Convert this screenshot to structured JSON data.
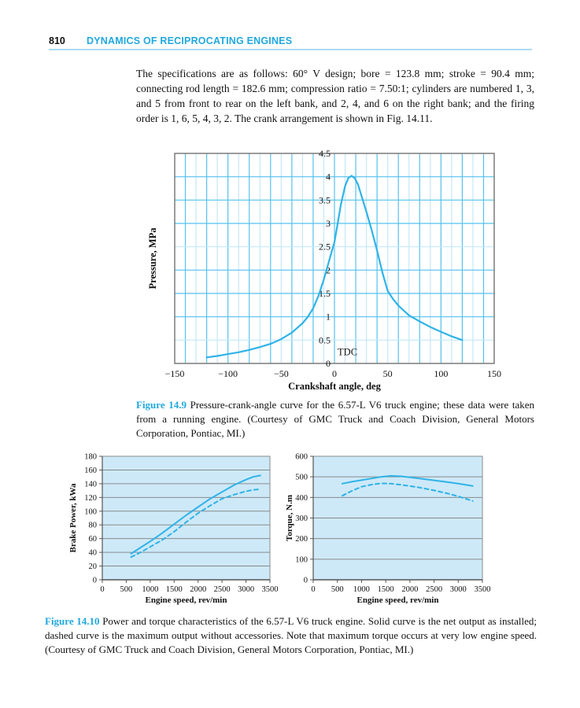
{
  "header": {
    "folio": "810",
    "title": "DYNAMICS OF RECIPROCATING ENGINES"
  },
  "paragraph": "The specifications are as follows: 60° V design; bore = 123.8 mm; stroke = 90.4 mm; connecting rod length = 182.6 mm; compression ratio = 7.50:1; cylinders are numbered 1, 3, and 5 from front to rear on the left bank, and 2, 4, and 6 on the right bank; and the firing order is 1, 6, 5, 4, 3, 2. The crank arrangement is shown in Fig. 14.11.",
  "figures": {
    "fig9": {
      "label": "Figure 14.9",
      "text": "Pressure-crank-angle curve for the 6.57-L V6 truck engine; these data were taken from a running engine. (Courtesy of GMC Truck and Coach Division, General Motors Corporation, Pontiac, MI.)"
    },
    "fig10": {
      "label": "Figure 14.10",
      "text": "Power and torque characteristics of the 6.57-L V6 truck engine. Solid curve is the net output as installed; dashed curve is the maximum output without accessories. Note that maximum torque occurs at very low engine speed. (Courtesy of GMC Truck and Coach Division, General Motors Corporation, Pontiac, MI.)"
    }
  },
  "colors": {
    "accent_cyan": "#20a8e0",
    "curve": "#2fb3e8",
    "grid_major": "#55c1ef",
    "grid_minor": "#c3e8f9",
    "frame": "#7b7b7b",
    "panel_bg": "#cde9f8",
    "panel_grid": "#8a8a8a",
    "panel_axis": "#555555",
    "rule_blue": "#abdcf2",
    "text": "#111111"
  },
  "chart_data": [
    {
      "id": "pressure",
      "type": "line",
      "xlabel": "Crankshaft angle, deg",
      "ylabel": "Pressure, MPa",
      "xlim": [
        -150,
        150
      ],
      "ylim": [
        0,
        4.5
      ],
      "xticks": [
        -150,
        -100,
        -50,
        0,
        50,
        100,
        150
      ],
      "xtick_labels": [
        "−150",
        "−100",
        "−50",
        "0",
        "50",
        "100",
        "150"
      ],
      "yticks": [
        0,
        0.5,
        1,
        1.5,
        2,
        2.5,
        3,
        3.5,
        4,
        4.5
      ],
      "ytick_labels": [
        "0",
        "0.5",
        "1",
        "1.5",
        "2",
        "2.5",
        "3",
        "3.5",
        "4",
        "4.5"
      ],
      "grid": {
        "x_step": 10,
        "x_major_every": 20,
        "y_step": 0.5,
        "y_light_at": [
          0.5,
          2.5
        ]
      },
      "annotation": {
        "text": "TDC",
        "x": 3,
        "y": 0.18
      },
      "legend": null,
      "series": [
        {
          "name": "cylinder-pressure",
          "style": "solid",
          "points": [
            [
              -120,
              0.13
            ],
            [
              -110,
              0.16
            ],
            [
              -100,
              0.2
            ],
            [
              -90,
              0.24
            ],
            [
              -80,
              0.29
            ],
            [
              -70,
              0.35
            ],
            [
              -60,
              0.42
            ],
            [
              -50,
              0.52
            ],
            [
              -40,
              0.66
            ],
            [
              -30,
              0.86
            ],
            [
              -25,
              1.0
            ],
            [
              -20,
              1.18
            ],
            [
              -15,
              1.45
            ],
            [
              -10,
              1.8
            ],
            [
              -5,
              2.2
            ],
            [
              0,
              2.6
            ],
            [
              3,
              3.0
            ],
            [
              6,
              3.4
            ],
            [
              10,
              3.8
            ],
            [
              13,
              3.97
            ],
            [
              16,
              4.02
            ],
            [
              19,
              3.97
            ],
            [
              22,
              3.84
            ],
            [
              25,
              3.62
            ],
            [
              30,
              3.25
            ],
            [
              35,
              2.85
            ],
            [
              40,
              2.42
            ],
            [
              45,
              1.95
            ],
            [
              50,
              1.55
            ],
            [
              55,
              1.38
            ],
            [
              60,
              1.24
            ],
            [
              70,
              1.03
            ],
            [
              80,
              0.9
            ],
            [
              90,
              0.78
            ],
            [
              100,
              0.68
            ],
            [
              110,
              0.58
            ],
            [
              120,
              0.5
            ]
          ]
        }
      ]
    },
    {
      "id": "power",
      "type": "line",
      "xlabel": "Engine speed, rev/min",
      "ylabel": "Brake Power, kWa",
      "xlim": [
        0,
        3500
      ],
      "ylim": [
        0,
        180
      ],
      "xticks": [
        0,
        500,
        1000,
        1500,
        2000,
        2500,
        3000,
        3500
      ],
      "xtick_labels": [
        "0",
        "500",
        "1000",
        "1500",
        "2000",
        "2500",
        "3000",
        "3500"
      ],
      "yticks": [
        0,
        20,
        40,
        60,
        80,
        100,
        120,
        140,
        160,
        180
      ],
      "ytick_labels": [
        "0",
        "20",
        "40",
        "60",
        "80",
        "100",
        "120",
        "140",
        "160",
        "180"
      ],
      "grid": {
        "y_step": 20
      },
      "series": [
        {
          "name": "net-output-installed",
          "style": "solid",
          "points": [
            [
              600,
              38
            ],
            [
              800,
              47
            ],
            [
              1000,
              56
            ],
            [
              1250,
              68
            ],
            [
              1500,
              81
            ],
            [
              1750,
              94
            ],
            [
              2000,
              106
            ],
            [
              2250,
              118
            ],
            [
              2500,
              128
            ],
            [
              2750,
              138
            ],
            [
              3000,
              146
            ],
            [
              3150,
              150
            ],
            [
              3300,
              152
            ]
          ]
        },
        {
          "name": "max-output-no-accessories",
          "style": "dashed",
          "points": [
            [
              600,
              33
            ],
            [
              800,
              40
            ],
            [
              1000,
              48
            ],
            [
              1250,
              58
            ],
            [
              1500,
              70
            ],
            [
              1750,
              84
            ],
            [
              2000,
              97
            ],
            [
              2250,
              108
            ],
            [
              2500,
              118
            ],
            [
              2750,
              124
            ],
            [
              3000,
              129
            ],
            [
              3150,
              131
            ],
            [
              3300,
              132
            ]
          ]
        }
      ]
    },
    {
      "id": "torque",
      "type": "line",
      "xlabel": "Engine speed, rev/min",
      "ylabel": "Torque, N.m",
      "xlim": [
        0,
        3500
      ],
      "ylim": [
        0,
        600
      ],
      "xticks": [
        0,
        500,
        1000,
        1500,
        2000,
        2500,
        3000,
        3500
      ],
      "xtick_labels": [
        "0",
        "500",
        "1000",
        "1500",
        "2000",
        "2500",
        "3000",
        "3500"
      ],
      "yticks": [
        0,
        100,
        200,
        300,
        400,
        500,
        600
      ],
      "ytick_labels": [
        "0",
        "100",
        "200",
        "300",
        "400",
        "500",
        "600"
      ],
      "grid": {
        "y_step": 100
      },
      "series": [
        {
          "name": "net-output-installed",
          "style": "solid",
          "points": [
            [
              600,
              467
            ],
            [
              800,
              476
            ],
            [
              1000,
              484
            ],
            [
              1200,
              492
            ],
            [
              1400,
              500
            ],
            [
              1600,
              505
            ],
            [
              1800,
              503
            ],
            [
              2000,
              498
            ],
            [
              2200,
              492
            ],
            [
              2500,
              483
            ],
            [
              2800,
              474
            ],
            [
              3000,
              467
            ],
            [
              3300,
              456
            ]
          ]
        },
        {
          "name": "max-output-no-accessories",
          "style": "dashed",
          "points": [
            [
              600,
              408
            ],
            [
              800,
              432
            ],
            [
              1000,
              452
            ],
            [
              1200,
              462
            ],
            [
              1400,
              468
            ],
            [
              1600,
              467
            ],
            [
              1800,
              462
            ],
            [
              2000,
              455
            ],
            [
              2200,
              448
            ],
            [
              2500,
              434
            ],
            [
              2800,
              418
            ],
            [
              3000,
              405
            ],
            [
              3300,
              383
            ]
          ]
        }
      ]
    }
  ]
}
